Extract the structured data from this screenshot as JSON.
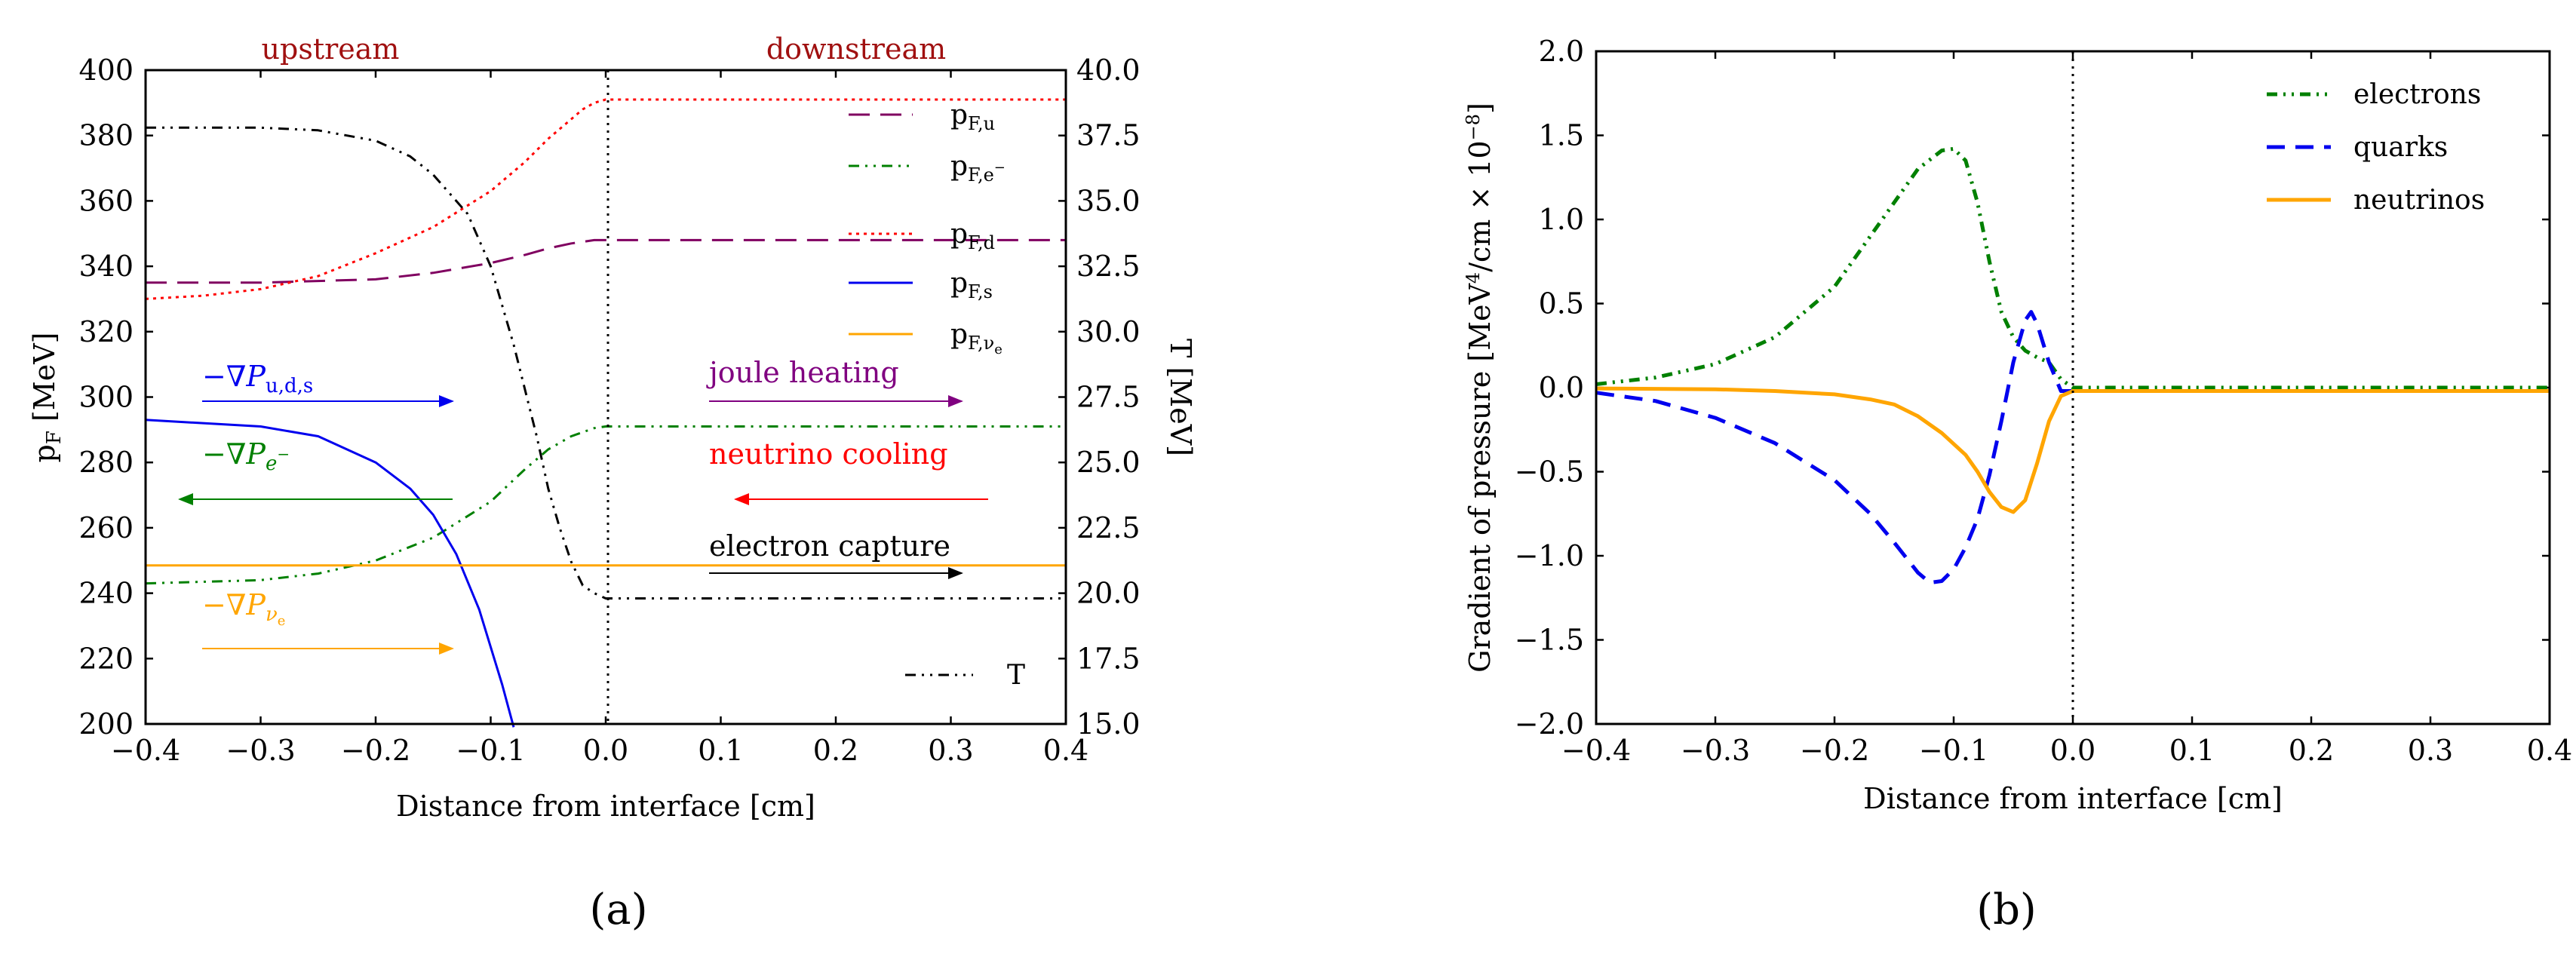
{
  "chart_data": [
    {
      "panel": "a",
      "type": "line",
      "panel_label": "(a)",
      "xlabel": "Distance from interface [cm]",
      "ylabel": "p_F [MeV]",
      "y2label": "T [MeV]",
      "xlim": [
        -0.4,
        0.4
      ],
      "ylim": [
        200,
        400
      ],
      "y2lim": [
        15.0,
        40.0
      ],
      "xticks": [
        "−0.4",
        "−0.3",
        "−0.2",
        "−0.1",
        "0.0",
        "0.1",
        "0.2",
        "0.3",
        "0.4"
      ],
      "xtick_values": [
        -0.4,
        -0.3,
        -0.2,
        -0.1,
        0.0,
        0.1,
        0.2,
        0.3,
        0.4
      ],
      "yticks": [
        "200",
        "220",
        "240",
        "260",
        "280",
        "300",
        "320",
        "340",
        "360",
        "380",
        "400"
      ],
      "ytick_values": [
        200,
        220,
        240,
        260,
        280,
        300,
        320,
        340,
        360,
        380,
        400
      ],
      "y2ticks": [
        "15.0",
        "17.5",
        "20.0",
        "22.5",
        "25.0",
        "27.5",
        "30.0",
        "32.5",
        "35.0",
        "37.5",
        "40.0"
      ],
      "y2tick_values": [
        15.0,
        17.5,
        20.0,
        22.5,
        25.0,
        27.5,
        30.0,
        32.5,
        35.0,
        37.5,
        40.0
      ],
      "region_labels": {
        "upstream": "upstream",
        "downstream": "downstream"
      },
      "series": [
        {
          "name": "p_F,u",
          "legend": "pF,u",
          "color": "#800060",
          "dash": "28 14",
          "axis": "left",
          "x": [
            -0.4,
            -0.3,
            -0.2,
            -0.15,
            -0.1,
            -0.07,
            -0.05,
            -0.03,
            -0.01,
            0.0,
            0.4
          ],
          "y": [
            335,
            335,
            336,
            338,
            341,
            343.5,
            345.5,
            347,
            348,
            348,
            348
          ]
        },
        {
          "name": "p_F,e-",
          "legend": "pF,e−",
          "color": "#008000",
          "dash": "14 8 3 8 3 8",
          "axis": "left",
          "x": [
            -0.4,
            -0.3,
            -0.25,
            -0.2,
            -0.15,
            -0.1,
            -0.07,
            -0.05,
            -0.03,
            -0.01,
            0.0,
            0.4
          ],
          "y": [
            243,
            244,
            246,
            250,
            257,
            268,
            278,
            284,
            288,
            290.5,
            291,
            291
          ]
        },
        {
          "name": "p_F,d",
          "legend": "pF,d",
          "color": "#ff0000",
          "dash": "4 6",
          "axis": "left",
          "x": [
            -0.4,
            -0.35,
            -0.3,
            -0.25,
            -0.2,
            -0.15,
            -0.1,
            -0.07,
            -0.05,
            -0.03,
            -0.02,
            -0.01,
            0.0,
            0.4
          ],
          "y": [
            330,
            331,
            333,
            337,
            344,
            352,
            363,
            372,
            379,
            385,
            388,
            390,
            391,
            391
          ]
        },
        {
          "name": "p_F,s",
          "legend": "pF,s",
          "color": "#0000ee",
          "dash": "",
          "axis": "left",
          "x": [
            -0.4,
            -0.3,
            -0.25,
            -0.2,
            -0.17,
            -0.15,
            -0.13,
            -0.11,
            -0.09,
            -0.08
          ],
          "y": [
            293,
            291,
            288,
            280,
            272,
            264,
            252,
            235,
            212,
            199
          ]
        },
        {
          "name": "p_F,nu_e",
          "legend": "pF,νe",
          "color": "#ffa500",
          "dash": "",
          "axis": "left",
          "x": [
            -0.4,
            0.4
          ],
          "y": [
            248.5,
            248.5
          ]
        },
        {
          "name": "T",
          "legend": "T",
          "color": "#000000",
          "dash": "14 8 3 8 3 8",
          "axis": "right",
          "x": [
            -0.4,
            -0.3,
            -0.25,
            -0.2,
            -0.17,
            -0.15,
            -0.12,
            -0.1,
            -0.08,
            -0.06,
            -0.05,
            -0.04,
            -0.03,
            -0.02,
            -0.01,
            0.0,
            0.4
          ],
          "y": [
            37.8,
            37.8,
            37.7,
            37.3,
            36.7,
            36.0,
            34.5,
            32.5,
            29.5,
            26.0,
            24.0,
            22.5,
            21.2,
            20.3,
            20.0,
            19.8,
            19.8
          ]
        }
      ],
      "annotations": [
        {
          "text": "−∇P u,d,s",
          "color": "#0000ee",
          "direction": "right"
        },
        {
          "text": "−∇P e−",
          "color": "#008000",
          "direction": "left"
        },
        {
          "text": "−∇P νe",
          "color": "#ffa500",
          "direction": "right"
        },
        {
          "text": "joule heating",
          "color": "#800080",
          "direction": "right"
        },
        {
          "text": "neutrino cooling",
          "color": "#ff0000",
          "direction": "left"
        },
        {
          "text": "electron capture",
          "color": "#000000",
          "direction": "right"
        }
      ]
    },
    {
      "panel": "b",
      "type": "line",
      "panel_label": "(b)",
      "xlabel": "Distance from interface [cm]",
      "ylabel": "Gradient of pressure [MeV⁴/cm × 10⁻⁸]",
      "xlim": [
        -0.4,
        0.4
      ],
      "ylim": [
        -2.0,
        2.0
      ],
      "xticks": [
        "−0.4",
        "−0.3",
        "−0.2",
        "−0.1",
        "0.0",
        "0.1",
        "0.2",
        "0.3",
        "0.4"
      ],
      "xtick_values": [
        -0.4,
        -0.3,
        -0.2,
        -0.1,
        0.0,
        0.1,
        0.2,
        0.3,
        0.4
      ],
      "yticks": [
        "−2.0",
        "−1.5",
        "−1.0",
        "−0.5",
        "0.0",
        "0.5",
        "1.0",
        "1.5",
        "2.0"
      ],
      "ytick_values": [
        -2.0,
        -1.5,
        -1.0,
        -0.5,
        0.0,
        0.5,
        1.0,
        1.5,
        2.0
      ],
      "legend_position": "top-right",
      "series": [
        {
          "name": "electrons",
          "color": "#008000",
          "dash": "14 8 3 8 3 8",
          "x": [
            -0.4,
            -0.35,
            -0.3,
            -0.25,
            -0.2,
            -0.17,
            -0.15,
            -0.13,
            -0.11,
            -0.1,
            -0.09,
            -0.08,
            -0.07,
            -0.06,
            -0.05,
            -0.04,
            -0.03,
            -0.02,
            -0.01,
            0.0,
            0.4
          ],
          "y": [
            0.02,
            0.06,
            0.14,
            0.3,
            0.6,
            0.9,
            1.1,
            1.3,
            1.41,
            1.42,
            1.35,
            1.1,
            0.75,
            0.45,
            0.3,
            0.22,
            0.18,
            0.15,
            0.05,
            0.0,
            0.0
          ]
        },
        {
          "name": "quarks",
          "color": "#0000ee",
          "dash": "24 14",
          "x": [
            -0.4,
            -0.35,
            -0.3,
            -0.25,
            -0.2,
            -0.17,
            -0.15,
            -0.13,
            -0.12,
            -0.11,
            -0.1,
            -0.09,
            -0.08,
            -0.07,
            -0.06,
            -0.05,
            -0.04,
            -0.035,
            -0.03,
            -0.02,
            -0.01,
            0.0,
            0.4
          ],
          "y": [
            -0.03,
            -0.08,
            -0.18,
            -0.33,
            -0.55,
            -0.75,
            -0.92,
            -1.1,
            -1.16,
            -1.15,
            -1.08,
            -0.95,
            -0.78,
            -0.52,
            -0.2,
            0.15,
            0.4,
            0.45,
            0.38,
            0.15,
            -0.02,
            -0.02,
            -0.02
          ]
        },
        {
          "name": "neutrinos",
          "color": "#ffa500",
          "dash": "",
          "x": [
            -0.4,
            -0.3,
            -0.25,
            -0.2,
            -0.17,
            -0.15,
            -0.13,
            -0.11,
            -0.09,
            -0.08,
            -0.07,
            -0.06,
            -0.05,
            -0.04,
            -0.03,
            -0.02,
            -0.01,
            0.0,
            0.4
          ],
          "y": [
            -0.005,
            -0.01,
            -0.02,
            -0.04,
            -0.07,
            -0.1,
            -0.17,
            -0.27,
            -0.4,
            -0.5,
            -0.62,
            -0.71,
            -0.74,
            -0.67,
            -0.45,
            -0.2,
            -0.05,
            -0.02,
            -0.02
          ]
        }
      ]
    }
  ]
}
